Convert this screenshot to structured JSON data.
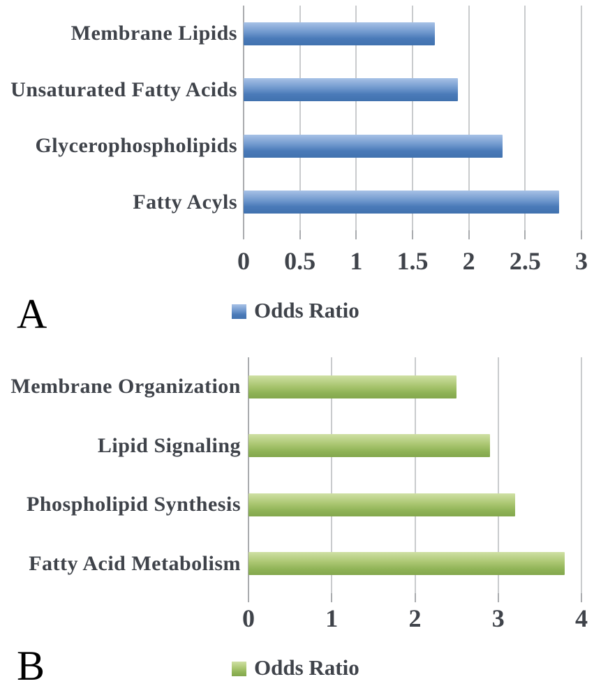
{
  "figure": {
    "background": "#ffffff",
    "grid_color": "#c9cbcd",
    "axis_color": "#a9abae",
    "text_color": "#3f434a"
  },
  "chart_data": [
    {
      "type": "bar",
      "orientation": "horizontal",
      "panel_label": "A",
      "title": "",
      "categories": [
        "Membrane Lipids",
        "Unsaturated Fatty Acids",
        "Glycerophospholipids",
        "Fatty Acyls"
      ],
      "values": [
        1.7,
        1.9,
        2.3,
        2.8
      ],
      "series_name": "Odds Ratio",
      "legend_label": "Odds Ratio",
      "legend_position": "bottom",
      "xlabel": "",
      "ylabel": "",
      "xlim": [
        0,
        3
      ],
      "xticks": [
        0,
        0.5,
        1,
        1.5,
        2,
        2.5,
        3
      ],
      "tick_labels": [
        "0",
        "0.5",
        "1",
        "1.5",
        "2",
        "2.5",
        "3"
      ],
      "grid": true,
      "bar_color": "#4f81bd",
      "bar_gradient": [
        "#a7c1e6 0%",
        "#6d96cc 45%",
        "#4a7ab8 70%",
        "#4172af 100%"
      ]
    },
    {
      "type": "bar",
      "orientation": "horizontal",
      "panel_label": "B",
      "title": "",
      "categories": [
        "Membrane Organization",
        "Lipid Signaling",
        "Phospholipid Synthesis",
        "Fatty Acid Metabolism"
      ],
      "values": [
        2.5,
        2.9,
        3.2,
        3.8
      ],
      "series_name": "Odds Ratio",
      "legend_label": "Odds Ratio",
      "legend_position": "bottom",
      "xlabel": "",
      "ylabel": "",
      "xlim": [
        0,
        4
      ],
      "xticks": [
        0,
        1,
        2,
        3,
        4
      ],
      "tick_labels": [
        "0",
        "1",
        "2",
        "3",
        "4"
      ],
      "grid": true,
      "bar_color": "#9bbb59",
      "bar_gradient": [
        "#cfe0a4 0%",
        "#aac671 45%",
        "#8fb356 75%",
        "#83a74d 100%"
      ]
    }
  ]
}
